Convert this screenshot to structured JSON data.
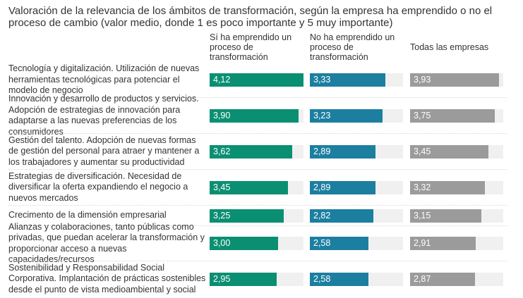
{
  "chart_data": {
    "type": "bar",
    "orientation": "horizontal",
    "title": "Valoración de la relevancia de los ámbitos de transformación, según la empresa ha emprendido o no el proceso de cambio (valor medio, donde 1 es poco importante y 5 muy importante)",
    "scale_max": 4.12,
    "series": [
      {
        "name": "Sí ha emprendido un proceso de transformación",
        "color": "#0b8f72",
        "values": [
          4.12,
          3.9,
          3.62,
          3.45,
          3.25,
          3.0,
          2.95
        ],
        "labels": [
          "4,12",
          "3,90",
          "3,62",
          "3,45",
          "3,25",
          "3,00",
          "2,95"
        ]
      },
      {
        "name": "No ha emprendido un proceso de transformación",
        "color": "#1c7fa0",
        "values": [
          3.33,
          3.23,
          2.89,
          2.89,
          2.82,
          2.58,
          2.58
        ],
        "labels": [
          "3,33",
          "3,23",
          "2,89",
          "2,89",
          "2,82",
          "2,58",
          "2,58"
        ]
      },
      {
        "name": "Todas las empresas",
        "color": "#9b9b9b",
        "values": [
          3.93,
          3.75,
          3.45,
          3.32,
          3.15,
          2.91,
          2.87
        ],
        "labels": [
          "3,93",
          "3,75",
          "3,45",
          "3,32",
          "3,15",
          "2,91",
          "2,87"
        ]
      }
    ],
    "categories": [
      "Tecnología y digitalización. Utilización de nuevas herramientas tecnológicas para potenciar el modelo de negocio",
      "Innovación y desarrollo de productos y servicios. Adopción de estrategias de innovación para adaptarse a las nuevas preferencias de los consumidores",
      "Gestión del talento. Adopción de nuevas formas de gestión del personal para atraer y mantener a los trabajadores y aumentar su productividad",
      "Estrategias de diversificación. Necesidad de diversificar la oferta expandiendo el negocio a nuevos mercados",
      "Crecimento de la dimensión empresarial",
      "Alianzas y colaboraciones, tanto públicas como privadas, que puedan acelerar la transformación y proporcionar acceso a nuevas capacidades/recursos",
      "Sostenibilidad y Responsabilidad Social Corporativa. Implantación de prácticas sostenibles desde el punto de vista medioambiental y social"
    ],
    "track_color": "#f0f0f0",
    "legend": "column-headers"
  }
}
